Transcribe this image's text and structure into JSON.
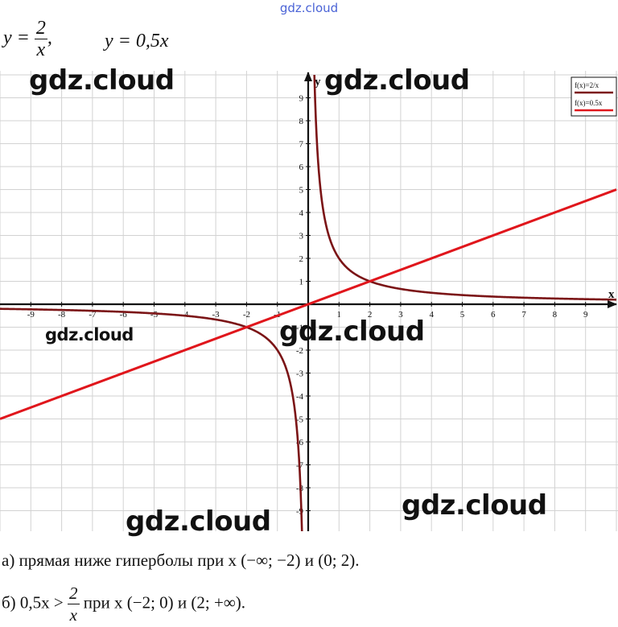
{
  "watermarks": {
    "top": "gdz.cloud",
    "main": "gdz.cloud"
  },
  "header": {
    "eq1_lhs": "y =",
    "eq1_num": "2",
    "eq1_den": "x",
    "eq1_sep": ",",
    "eq2": "y = 0,5x"
  },
  "chart_data": {
    "type": "line",
    "xlabel": "x",
    "ylabel": "y",
    "xlim": [
      -10,
      10
    ],
    "ylim": [
      -10,
      10
    ],
    "x_ticks": [
      -9,
      -8,
      -7,
      -6,
      -5,
      -4,
      -3,
      -2,
      -1,
      1,
      2,
      3,
      4,
      5,
      6,
      7,
      8,
      9
    ],
    "y_ticks": [
      9,
      8,
      7,
      6,
      5,
      4,
      3,
      2,
      1,
      -1,
      -2,
      -3,
      -4,
      -5,
      -6,
      -7,
      -8,
      -9
    ],
    "grid": true,
    "legend_position": "top-right",
    "series": [
      {
        "name": "f(x)=2/x",
        "formula": "2/x",
        "color": "#7b1416"
      },
      {
        "name": "f(x)=0.5x",
        "formula": "0.5x",
        "color": "#e0161c"
      }
    ],
    "intersections": [
      [
        -2,
        -1
      ],
      [
        2,
        1
      ]
    ]
  },
  "answers": {
    "a": "а) прямая ниже гиперболы при x (−∞; −2) и (0; 2).",
    "b_pre": "б) 0,5x >",
    "b_num": "2",
    "b_den": "x",
    "b_post": "при x (−2; 0) и (2; +∞)."
  }
}
